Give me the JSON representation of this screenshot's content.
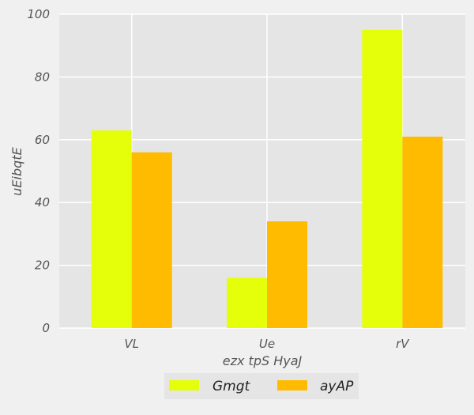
{
  "chart_data": {
    "type": "bar",
    "title": "",
    "xlabel": "ezx tpS HyaJ",
    "ylabel": "uEibqtE",
    "categories": [
      "VL",
      "Ue",
      "rV"
    ],
    "ylim": [
      0,
      100
    ],
    "yticks": [
      0,
      20,
      40,
      60,
      80,
      100
    ],
    "grid": true,
    "legend_position": "bottom-center",
    "series": [
      {
        "name": "Gmgt",
        "values": [
          63,
          16,
          95
        ],
        "color": "#e5ff0a"
      },
      {
        "name": "ayAP",
        "values": [
          56,
          34,
          61
        ],
        "color": "#ffbb00"
      }
    ],
    "colors": {
      "plot_background": "#e5e5e5",
      "grid": "#ffffff",
      "page_background": "#f0f0f0"
    }
  }
}
